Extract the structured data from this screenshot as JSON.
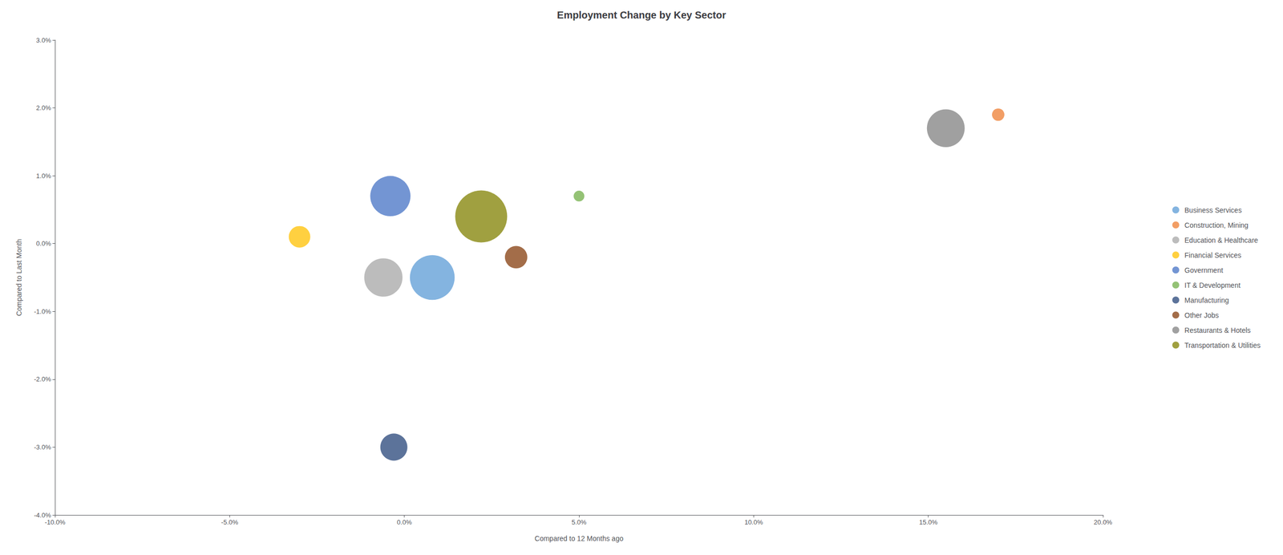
{
  "chart_data": {
    "type": "scatter",
    "title": "Employment Change by Key Sector",
    "xlabel": "Compared to 12 Months ago",
    "ylabel": "Compared to Last Month",
    "xlim": [
      -0.1,
      0.2
    ],
    "ylim": [
      -0.04,
      0.03
    ],
    "xticks": [
      {
        "value": -0.1,
        "label": "-10.0%"
      },
      {
        "value": -0.05,
        "label": "-5.0%"
      },
      {
        "value": 0.0,
        "label": "0.0%"
      },
      {
        "value": 0.05,
        "label": "5.0%"
      },
      {
        "value": 0.1,
        "label": "10.0%"
      },
      {
        "value": 0.15,
        "label": "15.0%"
      },
      {
        "value": 0.2,
        "label": "20.0%"
      }
    ],
    "yticks": [
      {
        "value": -0.04,
        "label": "-4.0%"
      },
      {
        "value": -0.03,
        "label": "-3.0%"
      },
      {
        "value": -0.02,
        "label": "-2.0%"
      },
      {
        "value": -0.01,
        "label": "-1.0%"
      },
      {
        "value": 0.0,
        "label": "0.0%"
      },
      {
        "value": 0.01,
        "label": "1.0%"
      },
      {
        "value": 0.02,
        "label": "2.0%"
      },
      {
        "value": 0.03,
        "label": "3.0%"
      }
    ],
    "grid": false,
    "legend": "right",
    "series": [
      {
        "name": "Business Services",
        "color": "#5b9bd5",
        "x": [
          0.008
        ],
        "values": [
          -0.005
        ],
        "size": [
          520000
        ]
      },
      {
        "name": "Construction, Mining",
        "color": "#ed7d31",
        "x": [
          0.17
        ],
        "values": [
          0.019
        ],
        "size": [
          40000
        ]
      },
      {
        "name": "Education & Healthcare",
        "color": "#a5a5a5",
        "x": [
          -0.006
        ],
        "values": [
          -0.005
        ],
        "size": [
          380000
        ]
      },
      {
        "name": "Financial Services",
        "color": "#ffc000",
        "x": [
          -0.03
        ],
        "values": [
          0.001
        ],
        "size": [
          120000
        ]
      },
      {
        "name": "Government",
        "color": "#4472c4",
        "x": [
          -0.004
        ],
        "values": [
          0.007
        ],
        "size": [
          420000
        ]
      },
      {
        "name": "IT & Development",
        "color": "#70ad47",
        "x": [
          0.05
        ],
        "values": [
          0.007
        ],
        "size": [
          30000
        ]
      },
      {
        "name": "Manufacturing",
        "color": "#264478",
        "x": [
          -0.003
        ],
        "values": [
          -0.03
        ],
        "size": [
          190000
        ]
      },
      {
        "name": "Other Jobs",
        "color": "#843c0c",
        "x": [
          0.032
        ],
        "values": [
          -0.002
        ],
        "size": [
          130000
        ]
      },
      {
        "name": "Restaurants & Hotels",
        "color": "#808080",
        "x": [
          0.155
        ],
        "values": [
          0.017
        ],
        "size": [
          370000
        ]
      },
      {
        "name": "Transportation & Utilities",
        "color": "#808000",
        "x": [
          0.022
        ],
        "values": [
          0.004
        ],
        "size": [
          700000
        ]
      }
    ]
  }
}
